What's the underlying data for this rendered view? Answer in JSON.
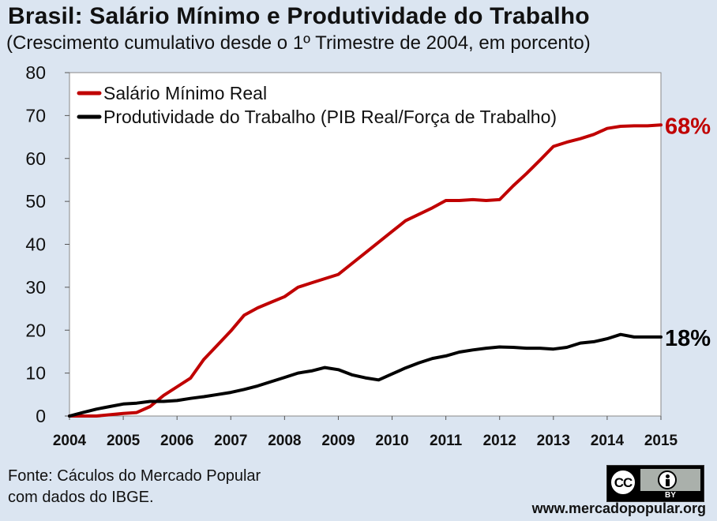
{
  "title": "Brasil: Salário Mínimo e Produtividade do Trabalho",
  "subtitle": "(Crescimento cumulativo desde o 1º Trimestre de 2004, em porcento)",
  "source_line1": "Fonte:  Cáculos do Mercado Popular",
  "source_line2": "com dados do IBGE.",
  "website": "www.mercadopopular.org",
  "license": {
    "cc_label": "CC",
    "by_label": "BY"
  },
  "chart_data": {
    "type": "line",
    "title": "Brasil: Salário Mínimo e Produtividade do Trabalho",
    "subtitle": "(Crescimento cumulativo desde o 1º Trimestre de 2004, em porcento)",
    "xlabel": "",
    "ylabel": "",
    "ylim": [
      0,
      80
    ],
    "yticks": [
      0,
      10,
      20,
      30,
      40,
      50,
      60,
      70,
      80
    ],
    "xlim": [
      2004,
      2015
    ],
    "xticks": [
      "2004",
      "2005",
      "2006",
      "2007",
      "2008",
      "2009",
      "2010",
      "2011",
      "2012",
      "2013",
      "2014",
      "2015"
    ],
    "grid": false,
    "legend": "top-left",
    "series": [
      {
        "name": "Salário Mínimo Real",
        "color": "#c00000",
        "end_label": "68%",
        "x": [
          2004,
          2004.25,
          2004.5,
          2004.75,
          2005,
          2005.25,
          2005.5,
          2005.75,
          2006,
          2006.25,
          2006.5,
          2006.75,
          2007,
          2007.25,
          2007.5,
          2007.75,
          2008,
          2008.25,
          2008.5,
          2008.75,
          2009,
          2009.25,
          2009.5,
          2009.75,
          2010,
          2010.25,
          2010.5,
          2010.75,
          2011,
          2011.25,
          2011.5,
          2011.75,
          2012,
          2012.25,
          2012.5,
          2012.75,
          2013,
          2013.25,
          2013.5,
          2013.75,
          2014,
          2014.25,
          2014.5,
          2014.75,
          2015
        ],
        "y": [
          0,
          0,
          0,
          0.3,
          0.6,
          0.8,
          2.2,
          4.8,
          6.8,
          8.8,
          13.2,
          16.5,
          19.8,
          23.5,
          25.2,
          26.5,
          27.8,
          30,
          31,
          32,
          33,
          35.5,
          38,
          40.5,
          43,
          45.5,
          47,
          48.5,
          50.2,
          50.2,
          50.4,
          50.2,
          50.4,
          53.6,
          56.5,
          59.6,
          62.8,
          63.8,
          64.6,
          65.6,
          67,
          67.5,
          67.6,
          67.6,
          67.8
        ]
      },
      {
        "name": "Produtividade do Trabalho (PIB Real/Força de Trabalho)",
        "color": "#000000",
        "end_label": "18%",
        "x": [
          2004,
          2004.25,
          2004.5,
          2004.75,
          2005,
          2005.25,
          2005.5,
          2005.75,
          2006,
          2006.25,
          2006.5,
          2006.75,
          2007,
          2007.25,
          2007.5,
          2007.75,
          2008,
          2008.25,
          2008.5,
          2008.75,
          2009,
          2009.25,
          2009.5,
          2009.75,
          2010,
          2010.25,
          2010.5,
          2010.75,
          2011,
          2011.25,
          2011.5,
          2011.75,
          2012,
          2012.25,
          2012.5,
          2012.75,
          2013,
          2013.25,
          2013.5,
          2013.75,
          2014,
          2014.25,
          2014.5,
          2014.75,
          2015
        ],
        "y": [
          0,
          0.8,
          1.6,
          2.2,
          2.8,
          3,
          3.4,
          3.4,
          3.6,
          4.1,
          4.5,
          5,
          5.5,
          6.2,
          7,
          8,
          9,
          10,
          10.5,
          11.3,
          10.8,
          9.6,
          8.9,
          8.4,
          9.8,
          11.2,
          12.4,
          13.4,
          14,
          14.9,
          15.4,
          15.8,
          16.1,
          16,
          15.8,
          15.8,
          15.6,
          16,
          17,
          17.3,
          18,
          19,
          18.4,
          18.4,
          18.4
        ]
      }
    ]
  }
}
